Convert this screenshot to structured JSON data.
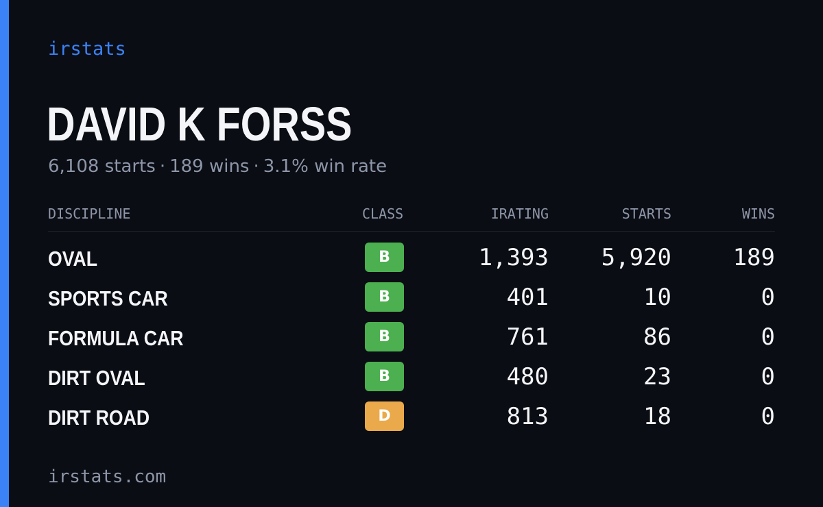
{
  "colors": {
    "accent": "#3b82f6",
    "class_B": "#4caf50",
    "class_D": "#eaa94a"
  },
  "brand": "irstats",
  "driver": {
    "name": "DAVID K FORSS",
    "starts_text": "6,108 starts",
    "wins_text": "189 wins",
    "win_rate_text": "3.1% win rate",
    "separator": "·"
  },
  "table": {
    "headers": {
      "discipline": "DISCIPLINE",
      "class": "CLASS",
      "irating": "IRATING",
      "starts": "STARTS",
      "wins": "WINS"
    },
    "rows": [
      {
        "discipline": "OVAL",
        "class": "B",
        "irating": "1,393",
        "starts": "5,920",
        "wins": "189"
      },
      {
        "discipline": "SPORTS CAR",
        "class": "B",
        "irating": "401",
        "starts": "10",
        "wins": "0"
      },
      {
        "discipline": "FORMULA CAR",
        "class": "B",
        "irating": "761",
        "starts": "86",
        "wins": "0"
      },
      {
        "discipline": "DIRT OVAL",
        "class": "B",
        "irating": "480",
        "starts": "23",
        "wins": "0"
      },
      {
        "discipline": "DIRT ROAD",
        "class": "D",
        "irating": "813",
        "starts": "18",
        "wins": "0"
      }
    ]
  },
  "footer": "irstats.com"
}
